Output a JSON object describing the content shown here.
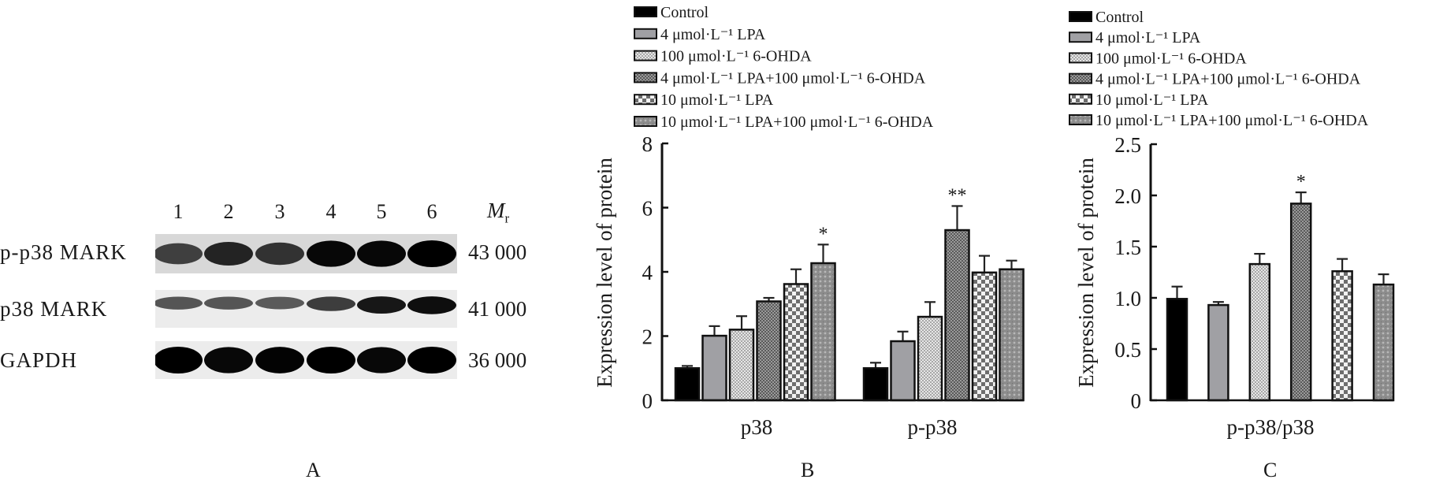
{
  "panel_a": {
    "lanes": [
      "1",
      "2",
      "3",
      "4",
      "5",
      "6"
    ],
    "mr_label": "M",
    "mr_sub": "r",
    "rows": [
      {
        "name": "p-p38 MARK",
        "mw": "43 000",
        "intensity": [
          0.55,
          0.75,
          0.65,
          0.95,
          0.95,
          1.0
        ]
      },
      {
        "name": "p38 MARK",
        "mw": "41 000",
        "intensity": [
          0.45,
          0.45,
          0.42,
          0.6,
          0.85,
          0.9
        ]
      },
      {
        "name": "GAPDH",
        "mw": "36 000",
        "intensity": [
          1.0,
          0.95,
          0.98,
          1.0,
          0.95,
          1.0
        ]
      }
    ]
  },
  "panel_labels": {
    "a": "A",
    "b": "B",
    "c": "C"
  },
  "legend": [
    {
      "label": "Control",
      "pattern": "black"
    },
    {
      "label": "4 μmol·L⁻¹ LPA",
      "pattern": "gray"
    },
    {
      "label": "100 μmol·L⁻¹ 6-OHDA",
      "pattern": "lightdots"
    },
    {
      "label": "4 μmol·L⁻¹ LPA+100 μmol·L⁻¹ 6-OHDA",
      "pattern": "darkdots"
    },
    {
      "label": "10 μmol·L⁻¹ LPA",
      "pattern": "checker"
    },
    {
      "label": "10 μmol·L⁻¹ LPA+100 μmol·L⁻¹ 6-OHDA",
      "pattern": "graydots"
    }
  ],
  "chart_data": [
    {
      "type": "bar",
      "title": "",
      "xlabel": "",
      "ylabel": "Expression level of protein",
      "ylim": [
        0,
        8
      ],
      "yticks": [
        "0",
        "2",
        "4",
        "6",
        "8"
      ],
      "categories": [
        "p38",
        "p-p38"
      ],
      "series": [
        {
          "name": "Control",
          "values": [
            1.0,
            1.0
          ],
          "errors": [
            0.07,
            0.17
          ]
        },
        {
          "name": "4 μmol·L⁻¹ LPA",
          "values": [
            2.01,
            1.84
          ],
          "errors": [
            0.3,
            0.3
          ]
        },
        {
          "name": "100 μmol·L⁻¹ 6-OHDA",
          "values": [
            2.2,
            2.6
          ],
          "errors": [
            0.42,
            0.46
          ]
        },
        {
          "name": "4 μmol·L⁻¹ LPA+100 μmol·L⁻¹ 6-OHDA",
          "values": [
            3.08,
            5.3
          ],
          "errors": [
            0.11,
            0.75
          ]
        },
        {
          "name": "10 μmol·L⁻¹ LPA",
          "values": [
            3.62,
            3.98
          ],
          "errors": [
            0.46,
            0.52
          ]
        },
        {
          "name": "10 μmol·L⁻¹ LPA+100 μmol·L⁻¹ 6-OHDA",
          "values": [
            4.27,
            4.08
          ],
          "errors": [
            0.58,
            0.27
          ]
        }
      ],
      "annotations": [
        {
          "category": "p38",
          "series": 5,
          "text": "*"
        },
        {
          "category": "p-p38",
          "series": 3,
          "text": "**"
        }
      ],
      "legend_position": "top"
    },
    {
      "type": "bar",
      "title": "",
      "xlabel": "",
      "ylabel": "Expression level of protein",
      "ylim": [
        0,
        2.5
      ],
      "yticks": [
        "0",
        "0.5",
        "1.0",
        "1.5",
        "2.0",
        "2.5"
      ],
      "categories": [
        "p-p38/p38"
      ],
      "series": [
        {
          "name": "Control",
          "values": [
            0.99
          ],
          "errors": [
            0.12
          ]
        },
        {
          "name": "4 μmol·L⁻¹ LPA",
          "values": [
            0.93
          ],
          "errors": [
            0.03
          ]
        },
        {
          "name": "100 μmol·L⁻¹ 6-OHDA",
          "values": [
            1.33
          ],
          "errors": [
            0.1
          ]
        },
        {
          "name": "4 μmol·L⁻¹ LPA+100 μmol·L⁻¹ 6-OHDA",
          "values": [
            1.92
          ],
          "errors": [
            0.11
          ]
        },
        {
          "name": "10 μmol·L⁻¹ LPA",
          "values": [
            1.26
          ],
          "errors": [
            0.12
          ]
        },
        {
          "name": "10 μmol·L⁻¹ LPA+100 μmol·L⁻¹ 6-OHDA",
          "values": [
            1.13
          ],
          "errors": [
            0.1
          ]
        }
      ],
      "annotations": [
        {
          "category": "p-p38/p38",
          "series": 3,
          "text": "*"
        }
      ],
      "legend_position": "top"
    }
  ]
}
